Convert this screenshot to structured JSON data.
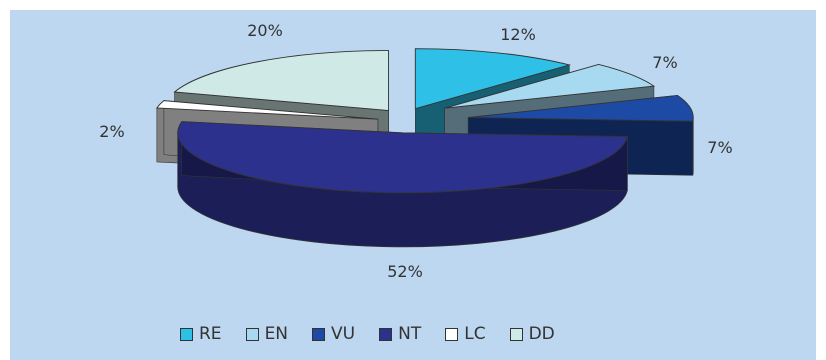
{
  "chart_data": {
    "type": "pie",
    "categories": [
      "RE",
      "EN",
      "VU",
      "NT",
      "LC",
      "DD"
    ],
    "values": [
      12,
      7,
      7,
      52,
      2,
      20
    ],
    "labels": [
      "12%",
      "7%",
      "7%",
      "52%",
      "2%",
      "20%"
    ],
    "colors": [
      "#2ec0e6",
      "#a7daf1",
      "#1c4aa5",
      "#2c318d",
      "#ffffff",
      "#cfeae6"
    ],
    "title": "",
    "legend_position": "bottom",
    "style": "3d-exploded"
  }
}
